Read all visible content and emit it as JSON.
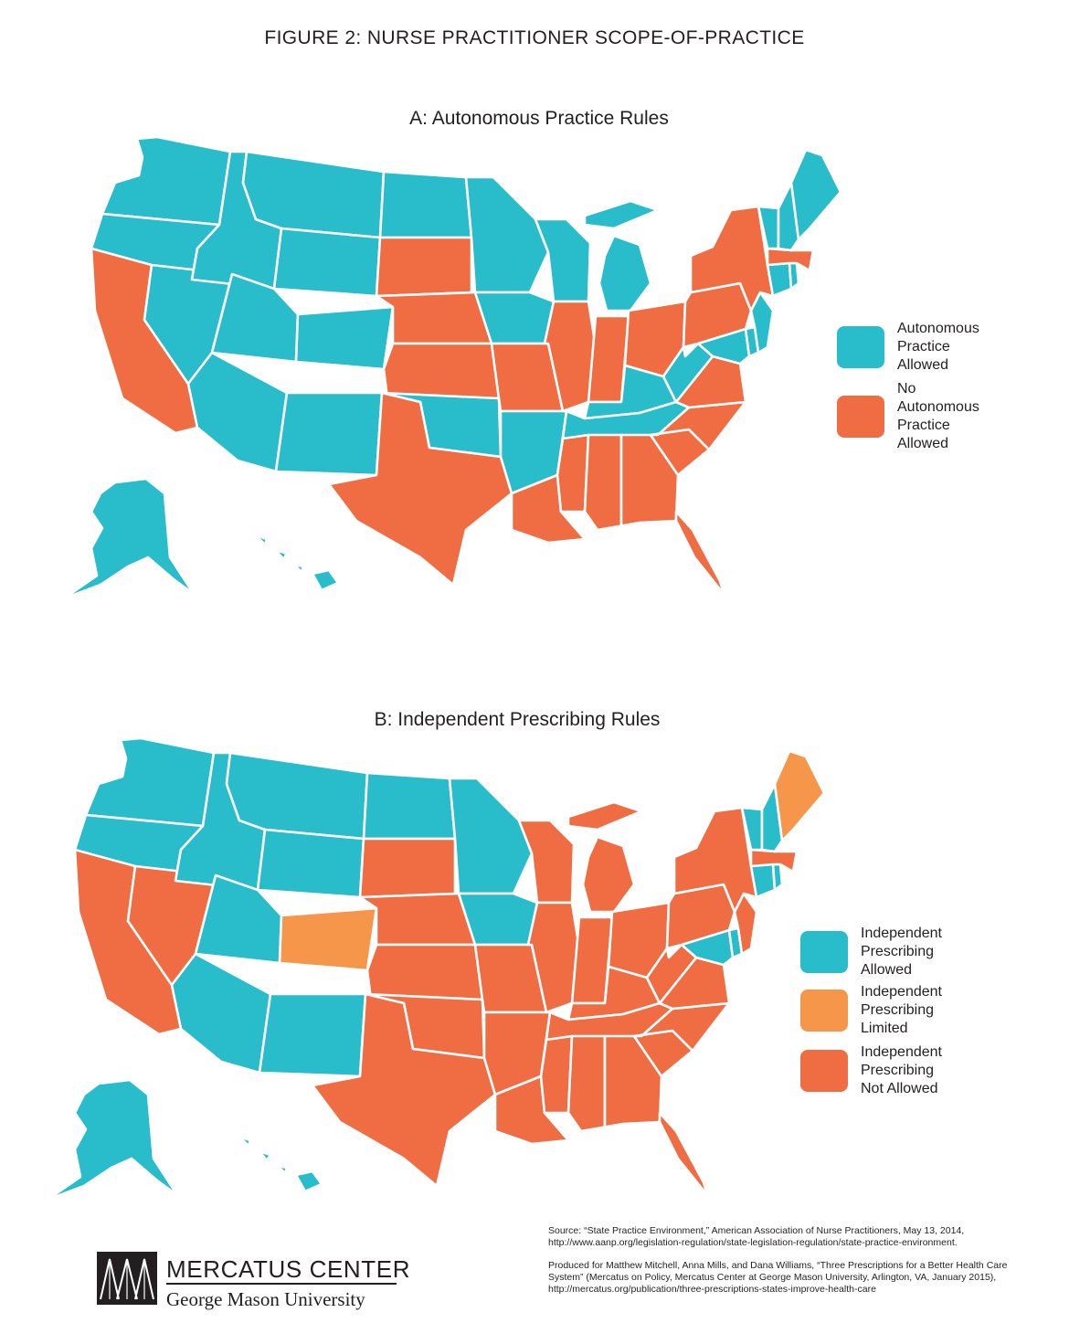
{
  "figure_title": "FIGURE 2: NURSE PRACTITIONER SCOPE-OF-PRACTICE",
  "colors": {
    "teal": "#29bccb",
    "red": "#f06c42",
    "orange": "#f6964a"
  },
  "map_a": {
    "title": "A: Autonomous Practice Rules",
    "legend": [
      {
        "line1": "Autonomous",
        "line2": "Practice Allowed",
        "color": "#29bccb"
      },
      {
        "line1": "No Autonomous",
        "line2": "Practice Allowed",
        "color": "#f06c42"
      }
    ],
    "states": {
      "WA": "teal",
      "OR": "teal",
      "CA": "red",
      "NV": "teal",
      "ID": "teal",
      "MT": "teal",
      "WY": "teal",
      "UT": "teal",
      "CO": "teal",
      "AZ": "teal",
      "NM": "teal",
      "ND": "teal",
      "SD": "red",
      "NE": "red",
      "KS": "red",
      "OK": "teal",
      "TX": "red",
      "MN": "teal",
      "IA": "teal",
      "MO": "red",
      "AR": "teal",
      "LA": "red",
      "WI": "teal",
      "IL": "red",
      "MI": "teal",
      "IN": "red",
      "OH": "red",
      "KY": "teal",
      "TN": "teal",
      "MS": "red",
      "AL": "red",
      "GA": "red",
      "FL": "red",
      "SC": "red",
      "NC": "red",
      "VA": "red",
      "WV": "teal",
      "MD": "teal",
      "DE": "teal",
      "PA": "red",
      "NJ": "teal",
      "NY": "red",
      "CT": "teal",
      "RI": "teal",
      "MA": "red",
      "VT": "teal",
      "NH": "teal",
      "ME": "teal",
      "AK": "teal",
      "HI": "teal"
    }
  },
  "map_b": {
    "title": "B: Independent Prescribing Rules",
    "legend": [
      {
        "line1": "Independent Prescribing",
        "line2": "Allowed",
        "color": "#29bccb"
      },
      {
        "line1": "Independent Prescribing",
        "line2": "Limited",
        "color": "#f6964a"
      },
      {
        "line1": "Independent Prescribing",
        "line2": "Not Allowed",
        "color": "#f06c42"
      }
    ],
    "states": {
      "WA": "teal",
      "OR": "teal",
      "CA": "red",
      "NV": "red",
      "ID": "teal",
      "MT": "teal",
      "WY": "teal",
      "UT": "teal",
      "CO": "orange",
      "AZ": "teal",
      "NM": "teal",
      "ND": "teal",
      "SD": "red",
      "NE": "red",
      "KS": "red",
      "OK": "red",
      "TX": "red",
      "MN": "teal",
      "IA": "teal",
      "MO": "red",
      "AR": "red",
      "LA": "red",
      "WI": "red",
      "IL": "red",
      "MI": "red",
      "IN": "red",
      "OH": "red",
      "KY": "red",
      "TN": "red",
      "MS": "red",
      "AL": "red",
      "GA": "red",
      "FL": "red",
      "SC": "red",
      "NC": "red",
      "VA": "red",
      "WV": "red",
      "MD": "teal",
      "DE": "teal",
      "PA": "red",
      "NJ": "red",
      "NY": "red",
      "CT": "teal",
      "RI": "teal",
      "MA": "red",
      "VT": "teal",
      "NH": "teal",
      "ME": "orange",
      "AK": "teal",
      "HI": "teal"
    }
  },
  "source": {
    "line1": "Source: “State Practice Environment,” American Association of Nurse Practitioners, May 13, 2014,",
    "line2": "http://www.aanp.org/legislation-regulation/state-legislation-regulation/state-practice-environment.",
    "line3": "Produced for Matthew Mitchell, Anna Mills, and Dana Williams, “Three Prescriptions for a Better Health Care",
    "line4": "System” (Mercatus on Policy, Mercatus Center at George Mason University, Arlington, VA, January 2015),",
    "line5": "http://mercatus.org/publication/three-prescriptions-states-improve-health-care"
  },
  "logo": {
    "name": "MERCATUS CENTER",
    "university": "George Mason University"
  }
}
